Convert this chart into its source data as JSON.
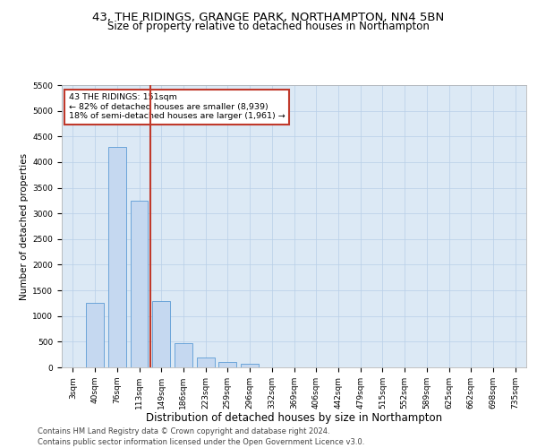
{
  "title1": "43, THE RIDINGS, GRANGE PARK, NORTHAMPTON, NN4 5BN",
  "title2": "Size of property relative to detached houses in Northampton",
  "xlabel": "Distribution of detached houses by size in Northampton",
  "ylabel": "Number of detached properties",
  "categories": [
    "3sqm",
    "40sqm",
    "76sqm",
    "113sqm",
    "149sqm",
    "186sqm",
    "223sqm",
    "259sqm",
    "296sqm",
    "332sqm",
    "369sqm",
    "406sqm",
    "442sqm",
    "479sqm",
    "515sqm",
    "552sqm",
    "589sqm",
    "625sqm",
    "662sqm",
    "698sqm",
    "735sqm"
  ],
  "values": [
    0,
    1250,
    4300,
    3250,
    1300,
    480,
    200,
    100,
    70,
    0,
    0,
    0,
    0,
    0,
    0,
    0,
    0,
    0,
    0,
    0,
    0
  ],
  "bar_color": "#c5d8f0",
  "bar_edge_color": "#5b9bd5",
  "vline_pos": 3.5,
  "vline_color": "#c0392b",
  "annotation_text": "43 THE RIDINGS: 151sqm\n← 82% of detached houses are smaller (8,939)\n18% of semi-detached houses are larger (1,961) →",
  "annotation_box_facecolor": "#ffffff",
  "annotation_box_edgecolor": "#c0392b",
  "ylim_max": 5500,
  "yticks": [
    0,
    500,
    1000,
    1500,
    2000,
    2500,
    3000,
    3500,
    4000,
    4500,
    5000,
    5500
  ],
  "plot_bg_color": "#dce9f5",
  "footer": "Contains HM Land Registry data © Crown copyright and database right 2024.\nContains public sector information licensed under the Open Government Licence v3.0.",
  "title_fontsize": 9.5,
  "subtitle_fontsize": 8.5,
  "xlabel_fontsize": 8.5,
  "ylabel_fontsize": 7.5,
  "tick_fontsize": 6.5,
  "annot_fontsize": 6.8,
  "footer_fontsize": 6.0
}
